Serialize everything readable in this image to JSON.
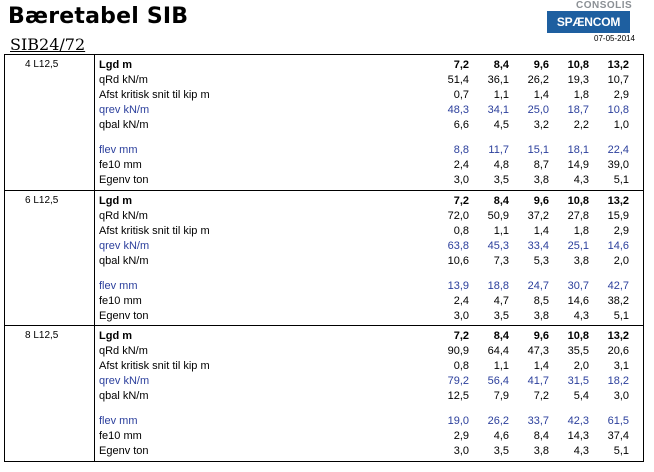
{
  "header": {
    "title": "Bæretabel SIB",
    "subtitle": "SIB24/72",
    "logo_top": "CONSOLIS",
    "logo_brand": "SPÆNCOM",
    "date": "07-05-2014"
  },
  "blocks": [
    {
      "label": "4 L12,5",
      "rows": [
        {
          "name": "Lgd m",
          "values": [
            "7,2",
            "8,4",
            "9,6",
            "10,8",
            "13,2"
          ]
        },
        {
          "name": "qRd kN/m",
          "values": [
            "51,4",
            "36,1",
            "26,2",
            "19,3",
            "10,7"
          ]
        },
        {
          "name": "Afst kritisk snit til kip m",
          "values": [
            "0,7",
            "1,1",
            "1,4",
            "1,8",
            "2,9"
          ]
        },
        {
          "name": "qrev kN/m",
          "values": [
            "48,3",
            "34,1",
            "25,0",
            "18,7",
            "10,8"
          ]
        },
        {
          "name": "qbal kN/m",
          "values": [
            "6,6",
            "4,5",
            "3,2",
            "2,2",
            "1,0"
          ]
        },
        {
          "name": "flev mm",
          "values": [
            "8,8",
            "11,7",
            "15,1",
            "18,1",
            "22,4"
          ]
        },
        {
          "name": "fe10 mm",
          "values": [
            "2,4",
            "4,8",
            "8,7",
            "14,9",
            "39,0"
          ]
        },
        {
          "name": "Egenv ton",
          "values": [
            "3,0",
            "3,5",
            "3,8",
            "4,3",
            "5,1"
          ]
        }
      ]
    },
    {
      "label": "6 L12,5",
      "rows": [
        {
          "name": "Lgd m",
          "values": [
            "7,2",
            "8,4",
            "9,6",
            "10,8",
            "13,2"
          ]
        },
        {
          "name": "qRd kN/m",
          "values": [
            "72,0",
            "50,9",
            "37,2",
            "27,8",
            "15,9"
          ]
        },
        {
          "name": "Afst kritisk snit til kip m",
          "values": [
            "0,8",
            "1,1",
            "1,4",
            "1,8",
            "2,9"
          ]
        },
        {
          "name": "qrev kN/m",
          "values": [
            "63,8",
            "45,3",
            "33,4",
            "25,1",
            "14,6"
          ]
        },
        {
          "name": "qbal kN/m",
          "values": [
            "10,6",
            "7,3",
            "5,3",
            "3,8",
            "2,0"
          ]
        },
        {
          "name": "flev mm",
          "values": [
            "13,9",
            "18,8",
            "24,7",
            "30,7",
            "42,7"
          ]
        },
        {
          "name": "fe10 mm",
          "values": [
            "2,4",
            "4,7",
            "8,5",
            "14,6",
            "38,2"
          ]
        },
        {
          "name": "Egenv ton",
          "values": [
            "3,0",
            "3,5",
            "3,8",
            "4,3",
            "5,1"
          ]
        }
      ]
    },
    {
      "label": "8 L12,5",
      "rows": [
        {
          "name": "Lgd m",
          "values": [
            "7,2",
            "8,4",
            "9,6",
            "10,8",
            "13,2"
          ]
        },
        {
          "name": "qRd kN/m",
          "values": [
            "90,9",
            "64,4",
            "47,3",
            "35,5",
            "20,6"
          ]
        },
        {
          "name": "Afst kritisk snit til kip m",
          "values": [
            "0,8",
            "1,1",
            "1,4",
            "2,0",
            "3,1"
          ]
        },
        {
          "name": "qrev kN/m",
          "values": [
            "79,2",
            "56,4",
            "41,7",
            "31,5",
            "18,2"
          ]
        },
        {
          "name": "qbal kN/m",
          "values": [
            "12,5",
            "7,9",
            "7,2",
            "5,4",
            "3,0"
          ]
        },
        {
          "name": "flev mm",
          "values": [
            "19,0",
            "26,2",
            "33,7",
            "42,3",
            "61,5"
          ]
        },
        {
          "name": "fe10 mm",
          "values": [
            "2,9",
            "4,6",
            "8,4",
            "14,3",
            "37,4"
          ]
        },
        {
          "name": "Egenv ton",
          "values": [
            "3,0",
            "3,5",
            "3,8",
            "4,3",
            "5,1"
          ]
        }
      ]
    }
  ],
  "colors": {
    "blue_text": "#2b3f9c",
    "logo_blue": "#1e5fa0",
    "logo_gray": "#8a8f94"
  }
}
